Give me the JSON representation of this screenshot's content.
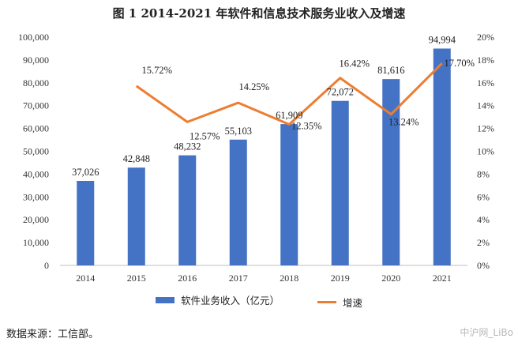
{
  "title": "图  1 2014-2021 年软件和信息技术服务业收入及增速",
  "source_note": "数据来源：工信部。",
  "watermark": "中沪网_LiBo",
  "colors": {
    "bar": "#4472C4",
    "line": "#ED7D31"
  },
  "chart_data": {
    "type": "bar",
    "categories": [
      "2014",
      "2015",
      "2016",
      "2017",
      "2018",
      "2019",
      "2020",
      "2021"
    ],
    "series": [
      {
        "name": "软件业务收入（亿元）",
        "type": "bar",
        "axis": "left",
        "values": [
          37026,
          42848,
          48232,
          55103,
          61909,
          72072,
          81616,
          94994
        ],
        "labels": [
          "37,026",
          "42,848",
          "48,232",
          "55,103",
          "61,909",
          "72,072",
          "81,616",
          "94,994"
        ]
      },
      {
        "name": "增速",
        "type": "line",
        "axis": "right",
        "values": [
          null,
          15.72,
          12.57,
          14.25,
          12.35,
          16.42,
          13.24,
          17.7
        ],
        "labels": [
          "",
          "15.72%",
          "12.57%",
          "14.25%",
          "12.35%",
          "16.42%",
          "13.24%",
          "17.70%"
        ]
      }
    ],
    "ylim": [
      0,
      100000
    ],
    "y_ticks": [
      "0",
      "10,000",
      "20,000",
      "30,000",
      "40,000",
      "50,000",
      "60,000",
      "70,000",
      "80,000",
      "90,000",
      "100,000"
    ],
    "y2lim": [
      0,
      20
    ],
    "y2_ticks": [
      "0%",
      "2%",
      "4%",
      "6%",
      "8%",
      "10%",
      "12%",
      "14%",
      "16%",
      "18%",
      "20%"
    ],
    "xlabel": "",
    "ylabel": "",
    "grid": false,
    "legend": "bottom"
  }
}
